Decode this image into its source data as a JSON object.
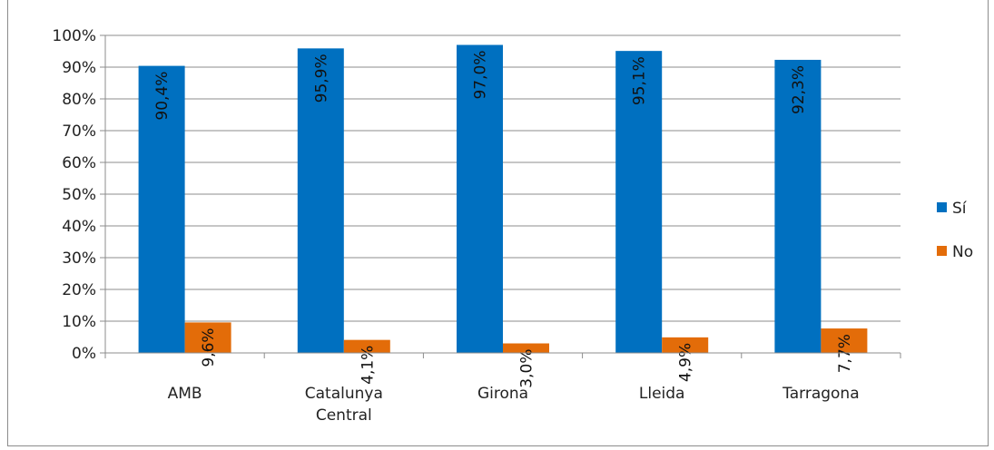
{
  "chart_data": {
    "type": "bar",
    "title": "",
    "xlabel": "",
    "ylabel": "",
    "categories": [
      "AMB",
      "Catalunya Central",
      "Girona",
      "Lleida",
      "Tarragona"
    ],
    "category_lines": [
      [
        "AMB"
      ],
      [
        "Catalunya",
        "Central"
      ],
      [
        "Girona"
      ],
      [
        "Lleida"
      ],
      [
        "Tarragona"
      ]
    ],
    "series": [
      {
        "name": "Sí",
        "color": "#0070c0",
        "values": [
          90.4,
          95.9,
          97.0,
          95.1,
          92.3
        ],
        "labels": [
          "90,4%",
          "95,9%",
          "97,0%",
          "95,1%",
          "92,3%"
        ]
      },
      {
        "name": "No",
        "color": "#e36c09",
        "values": [
          9.6,
          4.1,
          3.0,
          4.9,
          7.7
        ],
        "labels": [
          "9,6%",
          "4,1%",
          "3,0%",
          "4,9%",
          "7,7%"
        ]
      }
    ],
    "ylim": [
      0,
      100
    ],
    "yticks": [
      0,
      10,
      20,
      30,
      40,
      50,
      60,
      70,
      80,
      90,
      100
    ],
    "ytick_labels": [
      "0%",
      "10%",
      "20%",
      "30%",
      "40%",
      "50%",
      "60%",
      "70%",
      "80%",
      "90%",
      "100%"
    ],
    "grid": true,
    "legend_position": "right"
  }
}
